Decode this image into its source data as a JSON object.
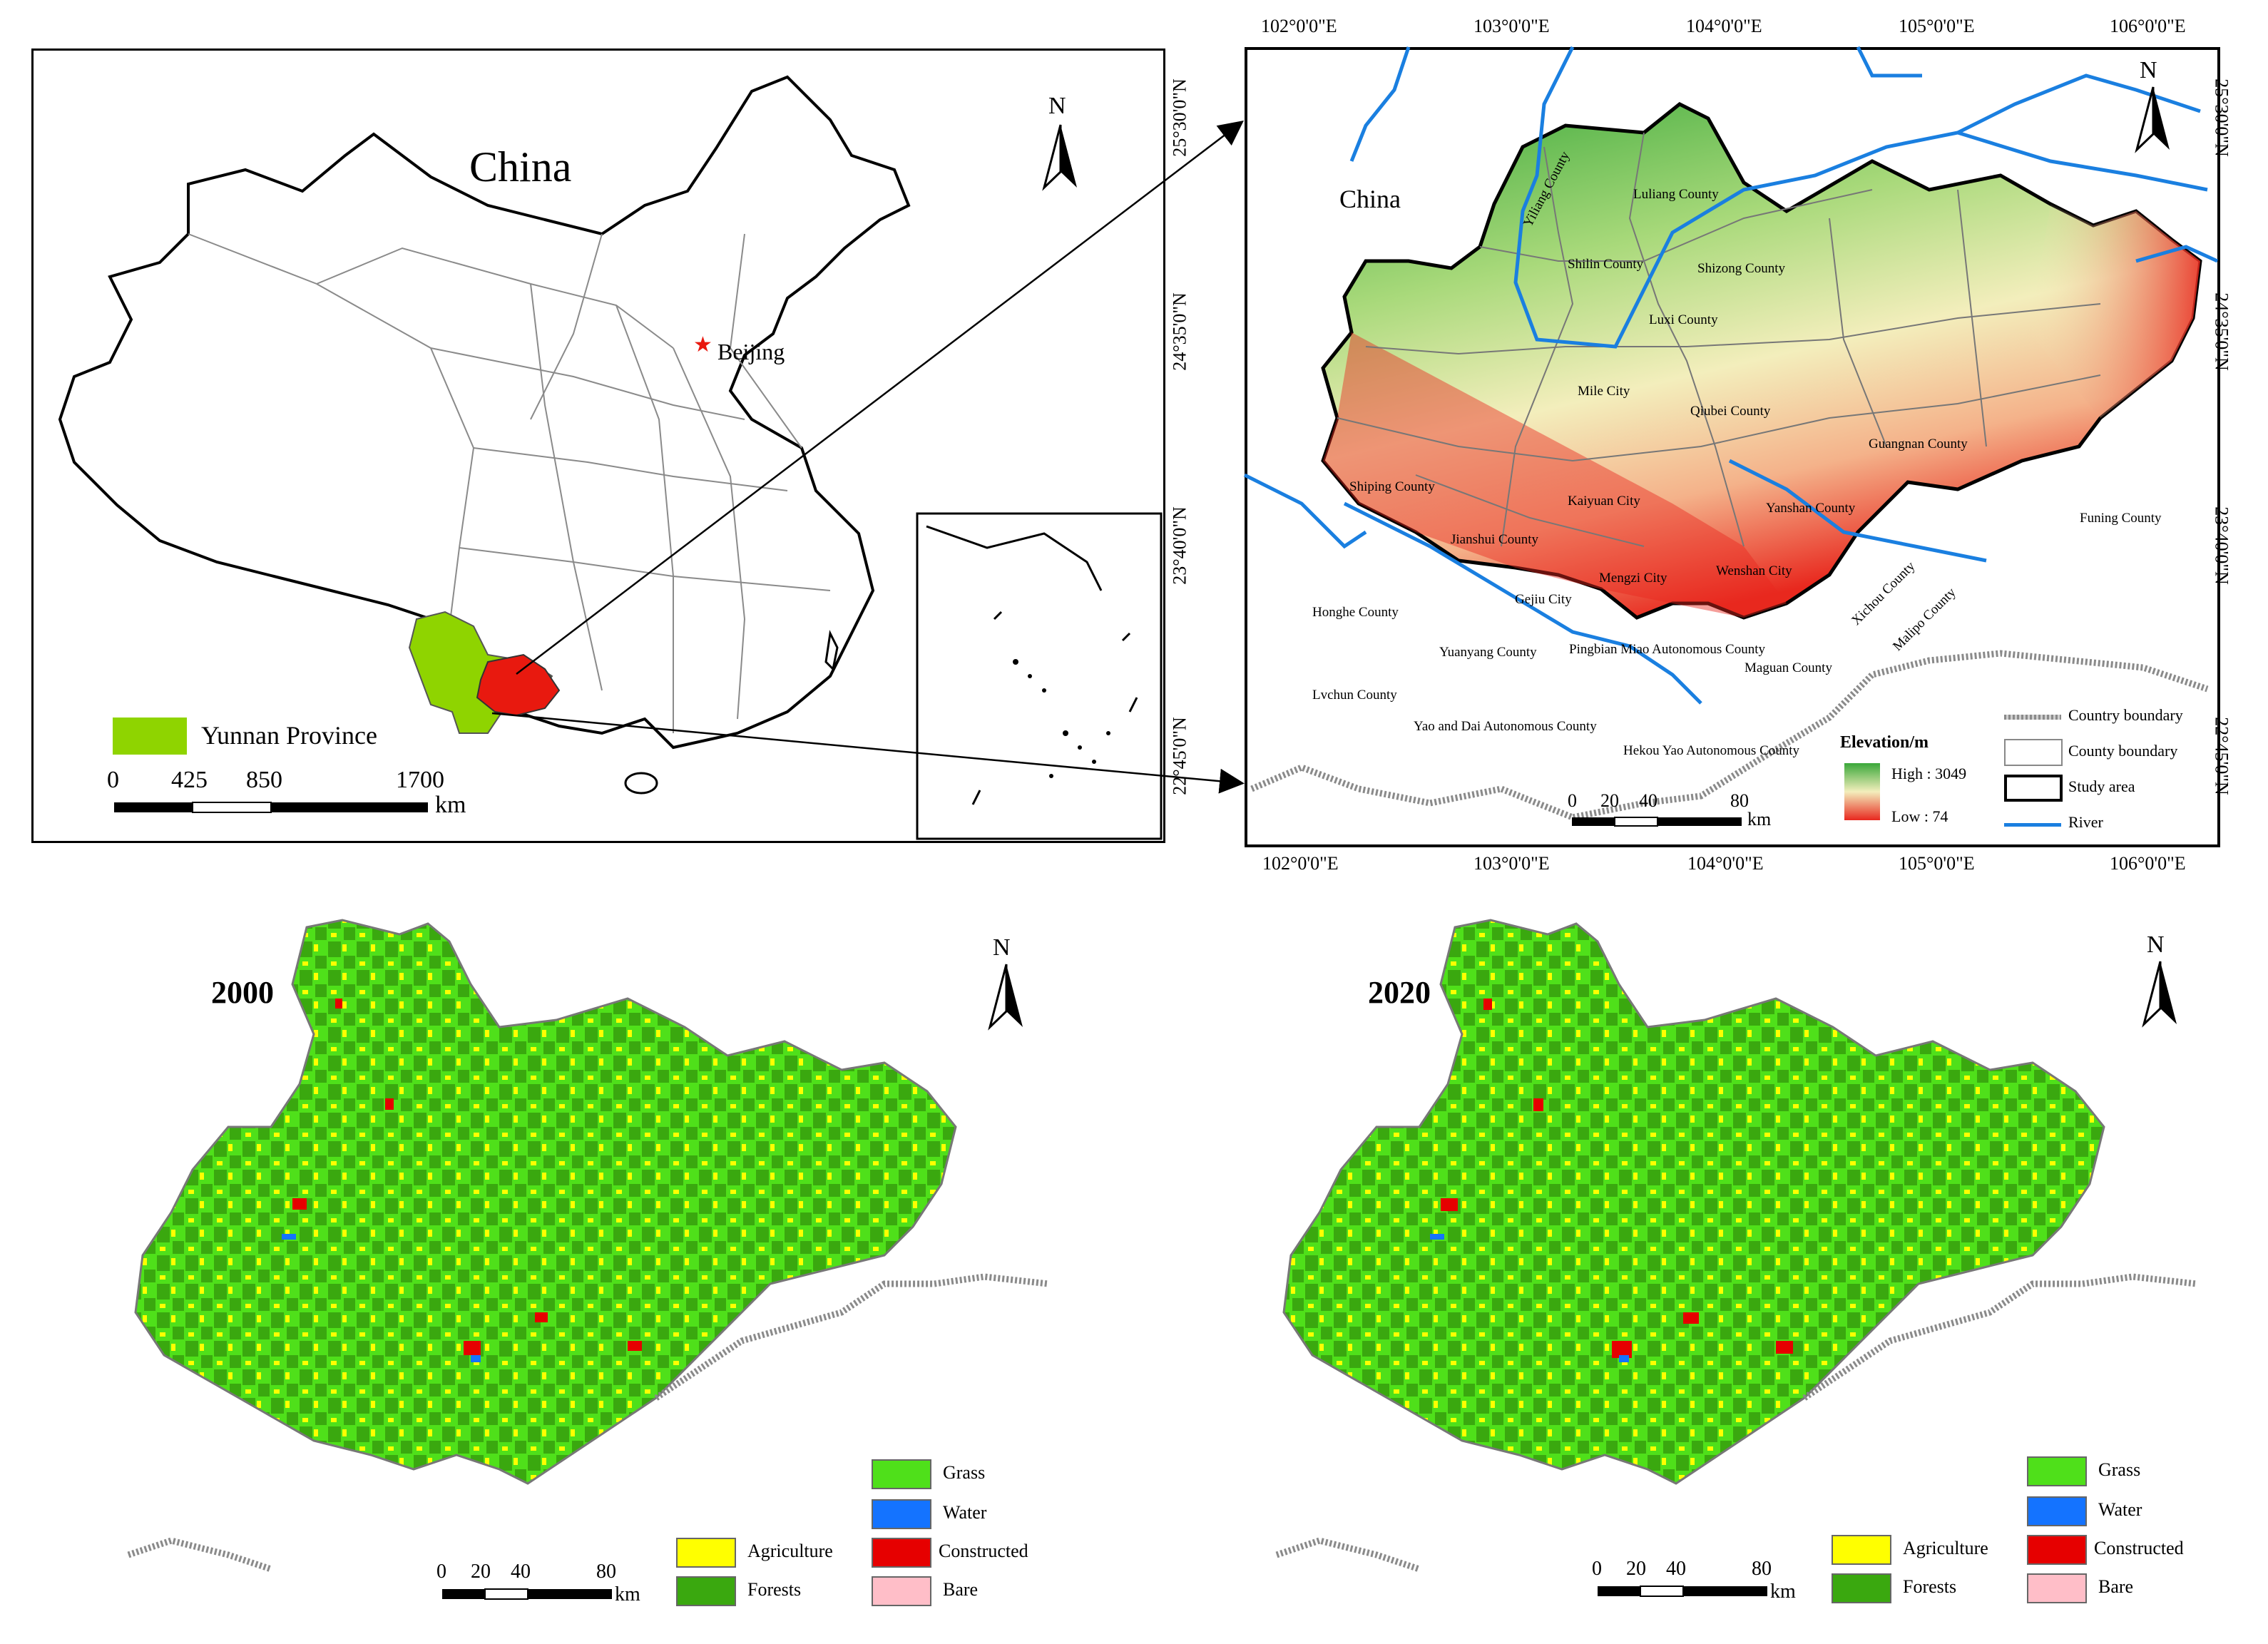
{
  "panel_a": {
    "country_label": "China",
    "capital_label": "Beijing",
    "province_legend": "Yunnan Province",
    "scale_ticks": [
      "0",
      "425",
      "850",
      "1700"
    ],
    "scale_unit": "km",
    "north": "N",
    "colors": {
      "yunnan": "#8fd400",
      "study_area": "#e8190f"
    }
  },
  "panel_b": {
    "country_label": "China",
    "north": "N",
    "lon_ticks": [
      "102°0'0\"E",
      "103°0'0\"E",
      "104°0'0\"E",
      "105°0'0\"E",
      "106°0'0\"E"
    ],
    "lat_ticks": [
      "25°30'0\"N",
      "24°35'0\"N",
      "23°40'0\"N",
      "22°45'0\"N"
    ],
    "counties": [
      "Yiliang County",
      "Luliang County",
      "Shilin County",
      "Shizong County",
      "Luxi County",
      "Mile City",
      "Qiubei County",
      "Guangnan County",
      "Shiping County",
      "Kaiyuan City",
      "Yanshan County",
      "Funing County",
      "Jianshui County",
      "Mengzi City",
      "Wenshan City",
      "Xichou County",
      "Gejiu City",
      "Malipo County",
      "Honghe County",
      "Yuanyang County",
      "Pingbian Miao Autonomous County",
      "Maguan County",
      "Lvchun County",
      "Yao and Dai Autonomous County",
      "Hekou Yao Autonomous County"
    ],
    "elevation_legend": {
      "title": "Elevation/m",
      "high": "High : 3049",
      "low": "Low : 74"
    },
    "legend": {
      "country_boundary": "Country boundary",
      "county_boundary": "County boundary",
      "study_area": "Study area",
      "river": "River"
    },
    "scale_ticks": [
      "0",
      "20",
      "40",
      "80"
    ],
    "scale_unit": "km",
    "colors": {
      "river": "#1a7fe0",
      "elev_high": "#3aa83a",
      "elev_low": "#e8281e"
    }
  },
  "landuse_maps": [
    {
      "year": "2000",
      "north": "N",
      "scale_ticks": [
        "0",
        "20",
        "40",
        "80"
      ],
      "scale_unit": "km"
    },
    {
      "year": "2020",
      "north": "N",
      "scale_ticks": [
        "0",
        "20",
        "40",
        "80"
      ],
      "scale_unit": "km"
    }
  ],
  "landuse_legend": {
    "grass": "Grass",
    "water": "Water",
    "agriculture": "Agriculture",
    "constructed": "Constructed",
    "forests": "Forests",
    "bare": "Bare"
  },
  "landuse_colors": {
    "grass": "#4fe01a",
    "water": "#1473ff",
    "agriculture": "#ffff00",
    "constructed": "#e60000",
    "forests": "#3aa80f",
    "bare": "#ffbec8"
  }
}
